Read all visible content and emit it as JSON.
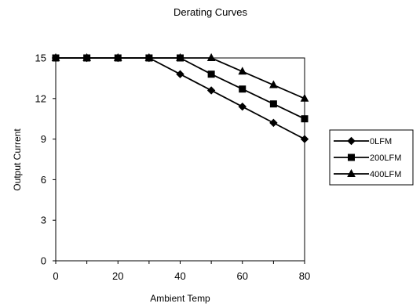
{
  "chart_data": {
    "type": "line",
    "title": "Derating Curves",
    "xlabel": "Ambient Temp",
    "ylabel": "Output Current",
    "xlim": [
      0,
      80
    ],
    "ylim": [
      0,
      15
    ],
    "xticks": [
      0,
      20,
      40,
      60,
      80
    ],
    "yticks": [
      0,
      3,
      6,
      9,
      12,
      15
    ],
    "grid": false,
    "legend_position": "right",
    "series": [
      {
        "name": "0LFM",
        "marker": "diamond",
        "x": [
          0,
          10,
          20,
          30,
          40,
          50,
          60,
          70,
          80
        ],
        "y": [
          15,
          15,
          15,
          15,
          13.8,
          12.6,
          11.4,
          10.2,
          9
        ]
      },
      {
        "name": "200LFM",
        "marker": "square",
        "x": [
          0,
          10,
          20,
          30,
          40,
          50,
          60,
          70,
          80
        ],
        "y": [
          15,
          15,
          15,
          15,
          15,
          13.8,
          12.7,
          11.6,
          10.5
        ]
      },
      {
        "name": "400LFM",
        "marker": "triangle",
        "x": [
          0,
          10,
          20,
          30,
          40,
          50,
          60,
          70,
          80
        ],
        "y": [
          15,
          15,
          15,
          15,
          15,
          15,
          14,
          13,
          12
        ]
      }
    ]
  },
  "colors": {
    "line": "#000000",
    "background": "#ffffff"
  }
}
